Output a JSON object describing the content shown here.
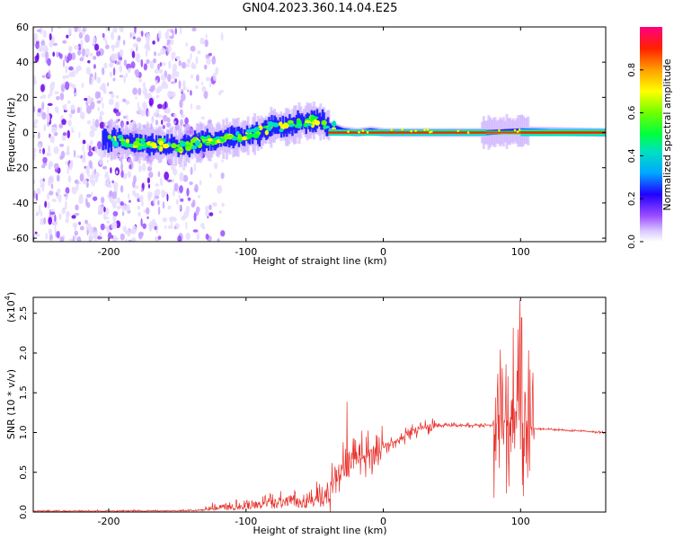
{
  "title": "GN04.2023.360.14.04.E25",
  "colors": {
    "snr_line": "#e8302a",
    "spectrogram_scale": [
      "#ffffff",
      "#c9b3ff",
      "#8a2be2",
      "#0000ff",
      "#00bfff",
      "#00ff7f",
      "#7fff00",
      "#ffff00",
      "#ff7f00",
      "#ff0000",
      "#ff1493"
    ]
  },
  "chart_data": [
    {
      "type": "heatmap",
      "xlabel": "Height of straight line (km)",
      "ylabel": "Frequency (Hz)",
      "xlim": [
        -255,
        162
      ],
      "ylim": [
        -62,
        60
      ],
      "xticks": [
        -200,
        -100,
        0,
        100
      ],
      "yticks": [
        60,
        40,
        20,
        0,
        -20,
        -40,
        -60
      ],
      "colorbar": {
        "label": "Normalized spectral amplitude",
        "range": [
          0,
          1
        ],
        "ticks": [
          "0.0",
          "0.2",
          "0.4",
          "0.6",
          "0.8"
        ]
      },
      "ridge": {
        "x": [
          -200,
          -180,
          -160,
          -150,
          -130,
          -110,
          -100,
          -90,
          -80,
          -70,
          -60,
          -50,
          -40,
          -30,
          -20,
          -10,
          0,
          50,
          75,
          100,
          162
        ],
        "frequency": [
          -4,
          -6,
          -7,
          -8,
          -5,
          -3,
          -2,
          0,
          4,
          3,
          6,
          7,
          4,
          1,
          0,
          1,
          0,
          0,
          0,
          1,
          0
        ]
      }
    },
    {
      "type": "line",
      "xlabel": "Height of straight line (km)",
      "ylabel": "SNR (10 * v/v)",
      "multiplier": "(x10",
      "multiplier_exp": "4",
      "multiplier_close": ")",
      "xlim": [
        -255,
        162
      ],
      "ylim": [
        0,
        2.7
      ],
      "xticks": [
        -200,
        -100,
        0,
        100
      ],
      "yticks": [
        "0.0",
        "0.5",
        "1.0",
        "1.5",
        "2.0",
        "2.5"
      ],
      "series": [
        {
          "x": [
            -255,
            -200,
            -160,
            -140,
            -120,
            -100,
            -90,
            -80,
            -70,
            -60,
            -50,
            -40,
            -30,
            -20,
            -10,
            0,
            10,
            20,
            30,
            40,
            50,
            60,
            70,
            80,
            85,
            90,
            95,
            100,
            105,
            110,
            120,
            140,
            162
          ],
          "y": [
            0.01,
            0.02,
            0.03,
            0.04,
            0.07,
            0.1,
            0.12,
            0.15,
            0.18,
            0.14,
            0.2,
            0.25,
            0.5,
            0.65,
            0.75,
            0.82,
            0.9,
            1.0,
            1.07,
            1.09,
            1.09,
            1.09,
            1.09,
            1.1,
            1.12,
            1.15,
            1.1,
            1.2,
            1.05,
            1.05,
            1.04,
            1.02,
            1.0
          ]
        }
      ]
    }
  ]
}
